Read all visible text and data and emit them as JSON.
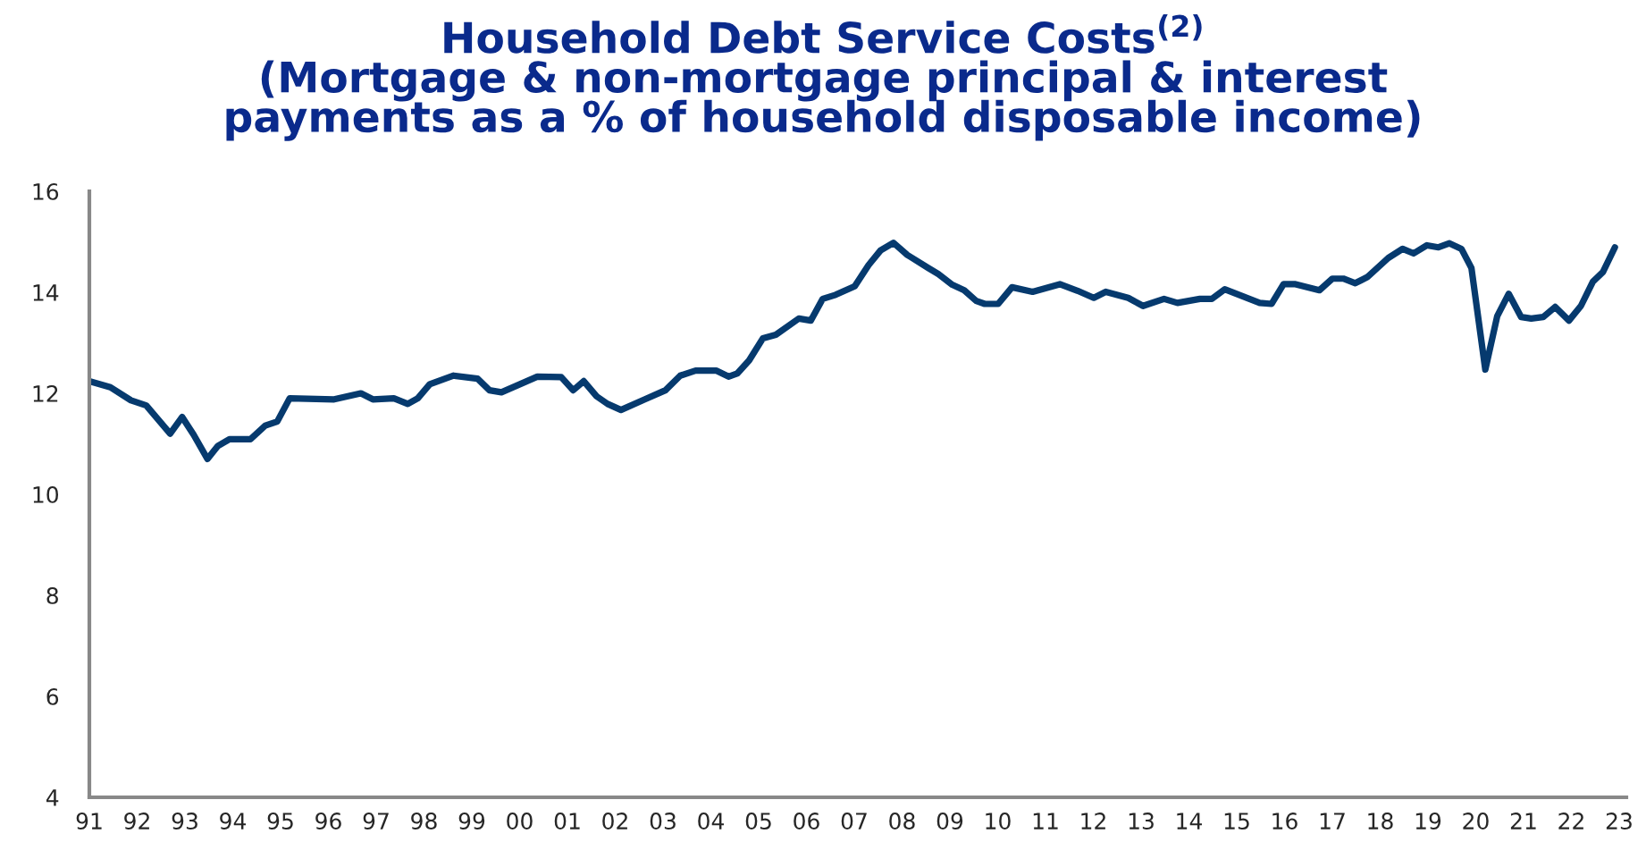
{
  "chart_data": {
    "type": "line",
    "title": "Household Debt Service Costs$^{(2)}$\n(Mortgage & non-mortgage principal & interest\npayments as a % of household disposable income)",
    "series": [
      {
        "color": "#063a6e",
        "x": [
          1991.0,
          1991.44,
          1991.87,
          1992.19,
          1992.69,
          1992.94,
          1993.18,
          1993.47,
          1993.69,
          1993.93,
          1994.37,
          1994.68,
          1994.93,
          1995.19,
          1996.12,
          1996.68,
          1996.93,
          1997.37,
          1997.66,
          1997.87,
          1998.12,
          1998.62,
          1999.12,
          1999.37,
          1999.62,
          2000.37,
          2000.87,
          2001.12,
          2001.34,
          2001.61,
          2001.84,
          2002.12,
          2002.62,
          2003.05,
          2003.36,
          2003.68,
          2004.11,
          2004.37,
          2004.55,
          2004.8,
          2005.09,
          2005.36,
          2005.84,
          2006.09,
          2006.34,
          2006.61,
          2007.01,
          2007.3,
          2007.55,
          2007.82,
          2008.11,
          2008.55,
          2008.76,
          2009.05,
          2009.3,
          2009.55,
          2009.73,
          2010.01,
          2010.3,
          2010.73,
          2011.3,
          2011.67,
          2012.01,
          2012.26,
          2012.73,
          2013.04,
          2013.48,
          2013.76,
          2014.23,
          2014.48,
          2014.75,
          2015.48,
          2015.73,
          2015.98,
          2016.23,
          2016.73,
          2017.0,
          2017.23,
          2017.48,
          2017.73,
          2018.17,
          2018.47,
          2018.7,
          2018.98,
          2019.22,
          2019.45,
          2019.7,
          2019.91,
          2020.2,
          2020.45,
          2020.69,
          2020.95,
          2021.16,
          2021.41,
          2021.66,
          2021.95,
          2022.2,
          2022.45,
          2022.66,
          2022.91
        ],
        "values": [
          12.24,
          12.12,
          11.86,
          11.76,
          11.2,
          11.53,
          11.18,
          10.7,
          10.96,
          11.09,
          11.09,
          11.36,
          11.44,
          11.9,
          11.88,
          12.0,
          11.88,
          11.9,
          11.79,
          11.9,
          12.18,
          12.35,
          12.29,
          12.06,
          12.02,
          12.33,
          12.32,
          12.06,
          12.24,
          11.94,
          11.79,
          11.67,
          11.88,
          12.06,
          12.35,
          12.45,
          12.45,
          12.33,
          12.39,
          12.65,
          13.09,
          13.16,
          13.48,
          13.44,
          13.87,
          13.95,
          14.12,
          14.54,
          14.83,
          14.98,
          14.74,
          14.48,
          14.36,
          14.15,
          14.04,
          13.83,
          13.77,
          13.77,
          14.1,
          14.01,
          14.16,
          14.03,
          13.89,
          14.01,
          13.89,
          13.73,
          13.87,
          13.79,
          13.87,
          13.87,
          14.06,
          13.79,
          13.77,
          14.16,
          14.16,
          14.04,
          14.27,
          14.27,
          14.18,
          14.3,
          14.68,
          14.86,
          14.77,
          14.93,
          14.89,
          14.97,
          14.86,
          14.48,
          12.47,
          13.53,
          13.97,
          13.51,
          13.48,
          13.51,
          13.71,
          13.44,
          13.73,
          14.21,
          14.4,
          14.89
        ]
      }
    ],
    "xlim": [
      1991,
      2023.15
    ],
    "xticks": [
      {
        "value": 1991,
        "label": "91"
      },
      {
        "value": 1992,
        "label": "92"
      },
      {
        "value": 1993,
        "label": "93"
      },
      {
        "value": 1994,
        "label": "94"
      },
      {
        "value": 1995,
        "label": "95"
      },
      {
        "value": 1996,
        "label": "96"
      },
      {
        "value": 1997,
        "label": "97"
      },
      {
        "value": 1998,
        "label": "98"
      },
      {
        "value": 1999,
        "label": "99"
      },
      {
        "value": 2000,
        "label": "00"
      },
      {
        "value": 2001,
        "label": "01"
      },
      {
        "value": 2002,
        "label": "02"
      },
      {
        "value": 2003,
        "label": "03"
      },
      {
        "value": 2004,
        "label": "04"
      },
      {
        "value": 2005,
        "label": "05"
      },
      {
        "value": 2006,
        "label": "06"
      },
      {
        "value": 2007,
        "label": "07"
      },
      {
        "value": 2008,
        "label": "08"
      },
      {
        "value": 2009,
        "label": "09"
      },
      {
        "value": 2010,
        "label": "10"
      },
      {
        "value": 2011,
        "label": "11"
      },
      {
        "value": 2012,
        "label": "12"
      },
      {
        "value": 2013,
        "label": "13"
      },
      {
        "value": 2014,
        "label": "14"
      },
      {
        "value": 2015,
        "label": "15"
      },
      {
        "value": 2016,
        "label": "16"
      },
      {
        "value": 2017,
        "label": "17"
      },
      {
        "value": 2018,
        "label": "18"
      },
      {
        "value": 2019,
        "label": "19"
      },
      {
        "value": 2020,
        "label": "20"
      },
      {
        "value": 2021,
        "label": "21"
      },
      {
        "value": 2022,
        "label": "22"
      },
      {
        "value": 2023,
        "label": "23"
      }
    ],
    "ylim": [
      4,
      16
    ],
    "yticks": [
      4,
      6,
      8,
      10,
      12,
      14,
      16
    ],
    "grid": false,
    "legend": false,
    "marker": "none",
    "line_style": "solid"
  }
}
